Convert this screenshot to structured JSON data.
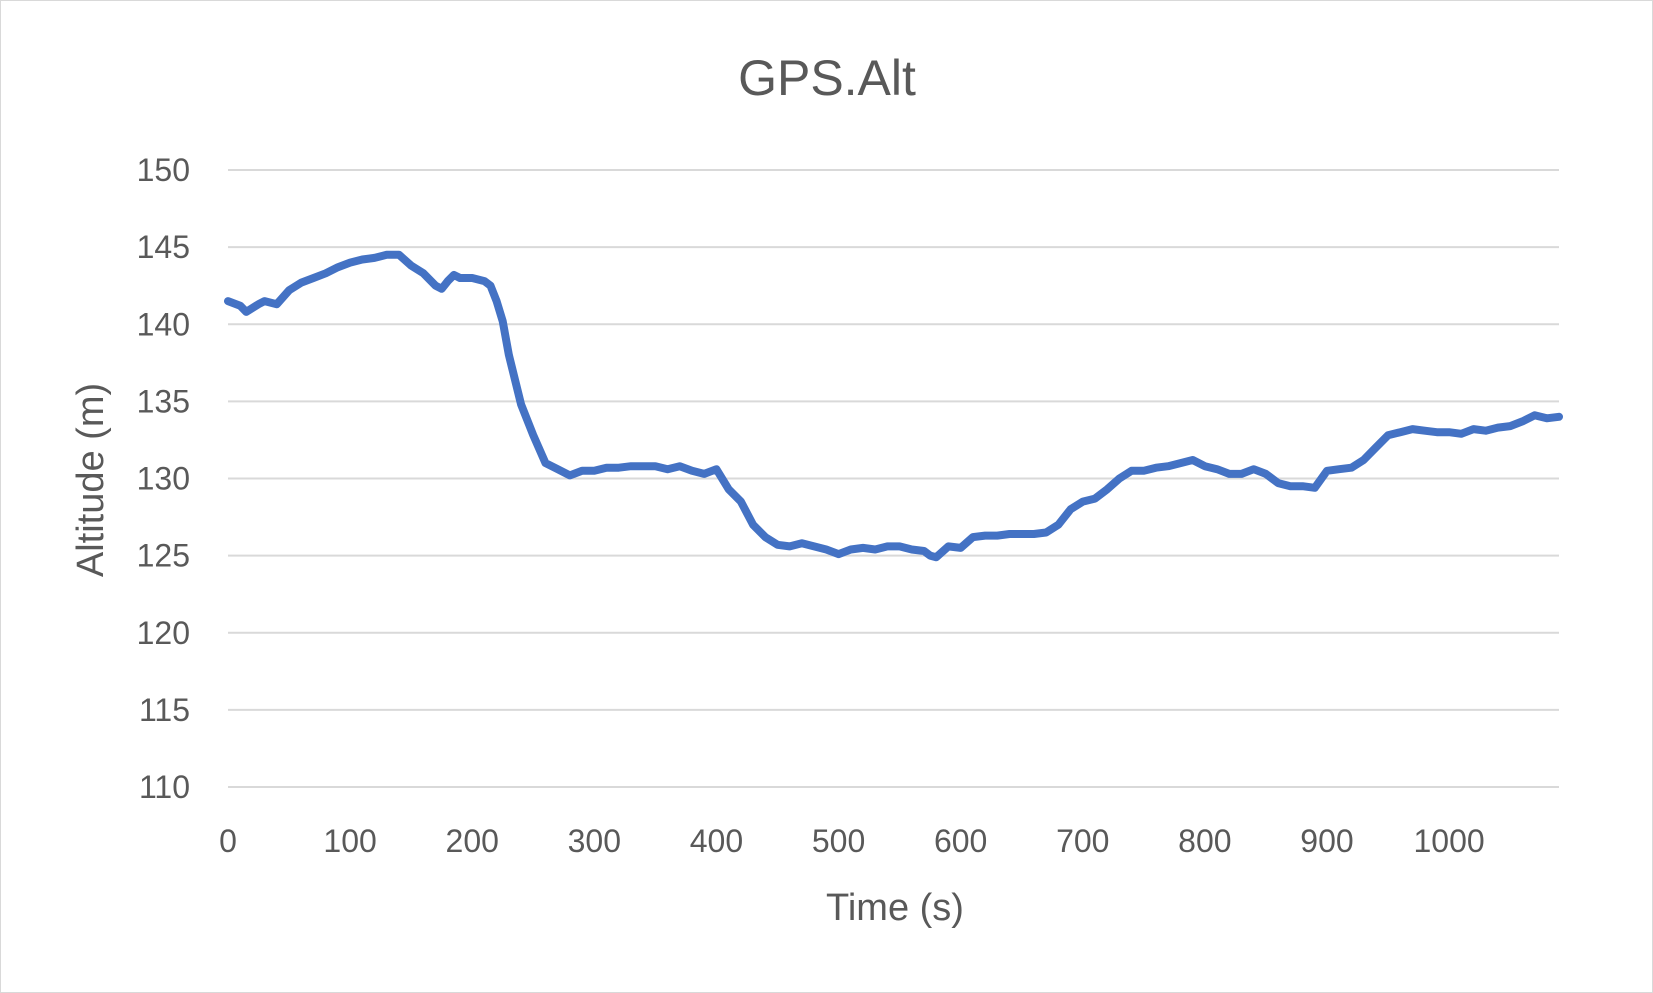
{
  "chart_data": {
    "type": "line",
    "title": "GPS.Alt",
    "xlabel": "Time (s)",
    "ylabel": "Altitude (m)",
    "xlim": [
      0,
      1090
    ],
    "ylim": [
      110,
      150
    ],
    "x_ticks": [
      0,
      100,
      200,
      300,
      400,
      500,
      600,
      700,
      800,
      900,
      1000
    ],
    "x_tick_labels": [
      "0",
      "100",
      "200",
      "300",
      "400",
      "500",
      "600",
      "700",
      "800",
      "900",
      "1000"
    ],
    "y_ticks": [
      110,
      115,
      120,
      125,
      130,
      135,
      140,
      145,
      150
    ],
    "y_tick_labels": [
      "110",
      "115",
      "120",
      "125",
      "130",
      "135",
      "140",
      "145",
      "150"
    ],
    "grid": "horizontal",
    "legend": "none",
    "series": [
      {
        "color": "#4472c4",
        "x": [
          0,
          10,
          15,
          25,
          30,
          40,
          50,
          60,
          70,
          80,
          90,
          100,
          110,
          120,
          130,
          140,
          150,
          160,
          170,
          175,
          180,
          185,
          190,
          200,
          210,
          215,
          220,
          225,
          230,
          240,
          250,
          260,
          270,
          280,
          290,
          300,
          310,
          320,
          330,
          340,
          350,
          360,
          370,
          380,
          390,
          400,
          410,
          420,
          430,
          440,
          450,
          460,
          470,
          480,
          490,
          500,
          510,
          520,
          530,
          540,
          550,
          560,
          570,
          575,
          580,
          590,
          600,
          610,
          620,
          630,
          640,
          650,
          660,
          670,
          680,
          690,
          700,
          710,
          720,
          730,
          740,
          750,
          760,
          770,
          780,
          790,
          800,
          810,
          820,
          830,
          840,
          850,
          860,
          870,
          880,
          890,
          900,
          910,
          920,
          930,
          940,
          950,
          960,
          970,
          980,
          990,
          1000,
          1010,
          1020,
          1030,
          1040,
          1050,
          1060,
          1070,
          1080,
          1090
        ],
        "y": [
          141.5,
          141.2,
          140.8,
          141.3,
          141.5,
          141.3,
          142.2,
          142.7,
          143.0,
          143.3,
          143.7,
          144.0,
          144.2,
          144.3,
          144.5,
          144.5,
          143.8,
          143.3,
          142.5,
          142.3,
          142.8,
          143.2,
          143.0,
          143.0,
          142.8,
          142.5,
          141.5,
          140.2,
          138.0,
          134.8,
          132.8,
          131.0,
          130.6,
          130.2,
          130.5,
          130.5,
          130.7,
          130.7,
          130.8,
          130.8,
          130.8,
          130.6,
          130.8,
          130.5,
          130.3,
          130.6,
          129.3,
          128.5,
          127.0,
          126.2,
          125.7,
          125.6,
          125.8,
          125.6,
          125.4,
          125.1,
          125.4,
          125.5,
          125.4,
          125.6,
          125.6,
          125.4,
          125.3,
          125.0,
          124.9,
          125.6,
          125.5,
          126.2,
          126.3,
          126.3,
          126.4,
          126.4,
          126.4,
          126.5,
          127.0,
          128.0,
          128.5,
          128.7,
          129.3,
          130.0,
          130.5,
          130.5,
          130.7,
          130.8,
          131.0,
          131.2,
          130.8,
          130.6,
          130.3,
          130.3,
          130.6,
          130.3,
          129.7,
          129.5,
          129.5,
          129.4,
          130.5,
          130.6,
          130.7,
          131.2,
          132.0,
          132.8,
          133.0,
          133.2,
          133.1,
          133.0,
          133.0,
          132.9,
          133.2,
          133.1,
          133.3,
          133.4,
          133.7,
          134.1,
          133.9,
          134.0
        ]
      }
    ]
  }
}
